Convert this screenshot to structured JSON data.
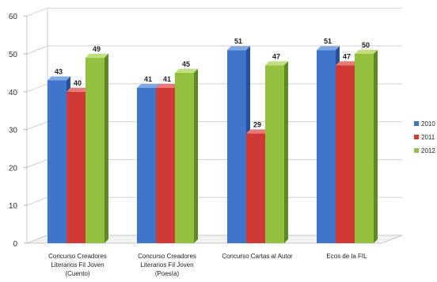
{
  "chart_data": {
    "type": "bar",
    "title": "",
    "xlabel": "",
    "ylabel": "",
    "ylim": [
      0,
      60
    ],
    "yticks": [
      "0",
      "10",
      "20",
      "30",
      "40",
      "50",
      "60"
    ],
    "grid": "horizontal",
    "legend_position": "right",
    "categories": [
      [
        "Concurso Creadores",
        "Literarios Fil Joven",
        "(Cuento)"
      ],
      [
        "Concurso Creadores",
        "Literarios Fil Joven",
        "(Poesía)"
      ],
      [
        "Concurso Cartas al Autor"
      ],
      [
        "Ecos de la FIL"
      ]
    ],
    "series": [
      {
        "name": "2010",
        "values": [
          43,
          41,
          51,
          51
        ]
      },
      {
        "name": "2011",
        "values": [
          40,
          41,
          29,
          47
        ]
      },
      {
        "name": "2012",
        "values": [
          49,
          45,
          47,
          50
        ]
      }
    ],
    "colors": {
      "2010": {
        "front": "#3f76cc",
        "top": "#7ea7e6",
        "side": "#254f96"
      },
      "2011": {
        "front": "#d03a36",
        "top": "#e67b76",
        "side": "#8f1f1c"
      },
      "2012": {
        "front": "#93c13f",
        "top": "#c1e07b",
        "side": "#5f8a23"
      }
    }
  }
}
